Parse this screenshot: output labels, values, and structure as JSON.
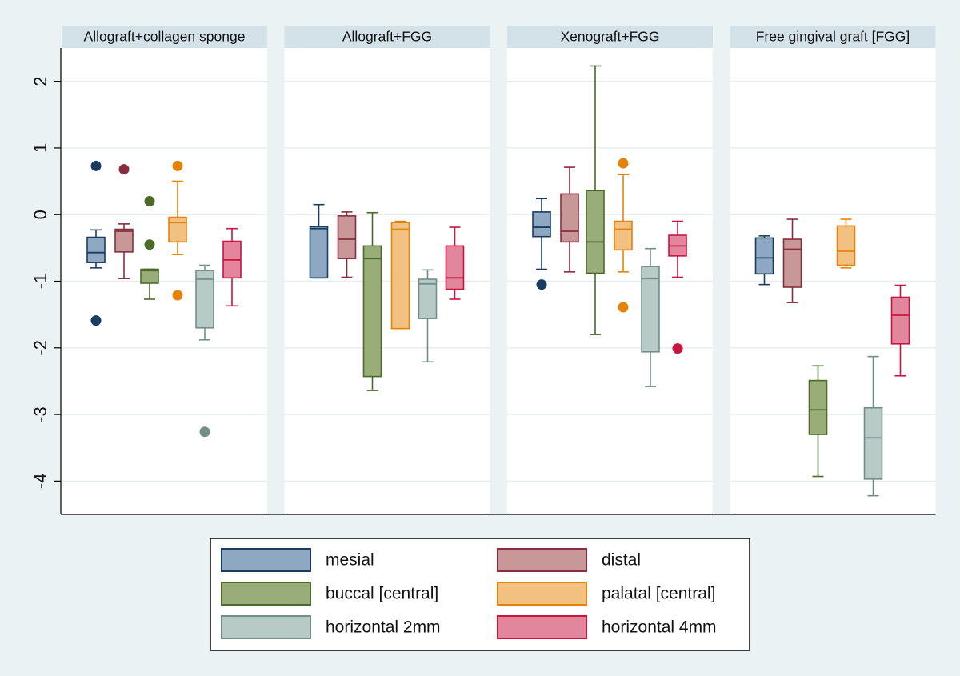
{
  "chart_data": {
    "type": "box",
    "y_axis": {
      "range": [
        -4.5,
        2.5
      ],
      "ticks": [
        2,
        1,
        0,
        -1,
        -2,
        -3,
        -4
      ],
      "tick_labels": [
        "2",
        "1",
        "0",
        "-1",
        "-2",
        "-3",
        "-4"
      ],
      "grid": true,
      "label": ""
    },
    "xlabel": "",
    "series": [
      {
        "name": "mesial",
        "fill": "#8fa8c2",
        "stroke": "#1a3c63"
      },
      {
        "name": "distal",
        "fill": "#c89898",
        "stroke": "#8a2c3d"
      },
      {
        "name": "buccal [central]",
        "fill": "#98ad78",
        "stroke": "#4a6b2a"
      },
      {
        "name": "palatal [central]",
        "fill": "#f2c080",
        "stroke": "#e5820a"
      },
      {
        "name": "horizontal 2mm",
        "fill": "#b8cac6",
        "stroke": "#718f8a"
      },
      {
        "name": "horizontal 4mm",
        "fill": "#e2869d",
        "stroke": "#c8143e"
      }
    ],
    "panels": [
      {
        "title": "Allograft+collagen sponge",
        "boxes": [
          {
            "series": "mesial",
            "whisker_low": -0.8,
            "q1": -0.72,
            "median": -0.57,
            "q3": -0.34,
            "whisker_high": -0.23,
            "outliers": [
              0.73,
              -1.59
            ]
          },
          {
            "series": "distal",
            "whisker_low": -0.96,
            "q1": -0.56,
            "median": -0.25,
            "q3": -0.22,
            "whisker_high": -0.14,
            "outliers": [
              0.68
            ]
          },
          {
            "series": "buccal [central]",
            "whisker_low": -1.27,
            "q1": -1.03,
            "median": -0.84,
            "q3": -0.82,
            "whisker_high": -0.82,
            "outliers": [
              0.2,
              -0.45
            ]
          },
          {
            "series": "palatal [central]",
            "whisker_low": -0.6,
            "q1": -0.41,
            "median": -0.12,
            "q3": -0.04,
            "whisker_high": 0.5,
            "outliers": [
              0.73,
              -1.21
            ]
          },
          {
            "series": "horizontal 2mm",
            "whisker_low": -1.88,
            "q1": -1.7,
            "median": -0.97,
            "q3": -0.84,
            "whisker_high": -0.76,
            "outliers": [
              -3.26
            ]
          },
          {
            "series": "horizontal 4mm",
            "whisker_low": -1.37,
            "q1": -0.95,
            "median": -0.68,
            "q3": -0.4,
            "whisker_high": -0.21,
            "outliers": []
          }
        ]
      },
      {
        "title": "Allograft+FGG",
        "boxes": [
          {
            "series": "mesial",
            "whisker_low": -0.95,
            "q1": -0.95,
            "median": -0.21,
            "q3": -0.18,
            "whisker_high": 0.15,
            "outliers": []
          },
          {
            "series": "distal",
            "whisker_low": -0.94,
            "q1": -0.66,
            "median": -0.37,
            "q3": -0.02,
            "whisker_high": 0.04,
            "outliers": []
          },
          {
            "series": "buccal [central]",
            "whisker_low": -2.64,
            "q1": -2.43,
            "median": -0.66,
            "q3": -0.47,
            "whisker_high": 0.03,
            "outliers": []
          },
          {
            "series": "palatal [central]",
            "whisker_low": -1.71,
            "q1": -1.71,
            "median": -0.22,
            "q3": -0.12,
            "whisker_high": -0.1,
            "outliers": []
          },
          {
            "series": "horizontal 2mm",
            "whisker_low": -2.21,
            "q1": -1.56,
            "median": -1.04,
            "q3": -0.97,
            "whisker_high": -0.83,
            "outliers": []
          },
          {
            "series": "horizontal 4mm",
            "whisker_low": -1.27,
            "q1": -1.12,
            "median": -0.95,
            "q3": -0.47,
            "whisker_high": -0.19,
            "outliers": []
          }
        ]
      },
      {
        "title": "Xenograft+FGG",
        "boxes": [
          {
            "series": "mesial",
            "whisker_low": -0.82,
            "q1": -0.33,
            "median": -0.19,
            "q3": 0.04,
            "whisker_high": 0.24,
            "outliers": [
              -1.05
            ]
          },
          {
            "series": "distal",
            "whisker_low": -0.86,
            "q1": -0.41,
            "median": -0.25,
            "q3": 0.31,
            "whisker_high": 0.71,
            "outliers": []
          },
          {
            "series": "buccal [central]",
            "whisker_low": -1.8,
            "q1": -0.88,
            "median": -0.41,
            "q3": 0.36,
            "whisker_high": 2.23,
            "outliers": []
          },
          {
            "series": "palatal [central]",
            "whisker_low": -0.86,
            "q1": -0.53,
            "median": -0.22,
            "q3": -0.1,
            "whisker_high": 0.6,
            "outliers": [
              0.77,
              -1.39
            ]
          },
          {
            "series": "horizontal 2mm",
            "whisker_low": -2.58,
            "q1": -2.06,
            "median": -0.96,
            "q3": -0.78,
            "whisker_high": -0.51,
            "outliers": []
          },
          {
            "series": "horizontal 4mm",
            "whisker_low": -0.94,
            "q1": -0.62,
            "median": -0.47,
            "q3": -0.31,
            "whisker_high": -0.1,
            "outliers": [
              -2.01
            ]
          }
        ]
      },
      {
        "title": "Free gingival graft [FGG]",
        "boxes": [
          {
            "series": "mesial",
            "whisker_low": -1.05,
            "q1": -0.89,
            "median": -0.65,
            "q3": -0.35,
            "whisker_high": -0.32,
            "outliers": []
          },
          {
            "series": "distal",
            "whisker_low": -1.32,
            "q1": -1.09,
            "median": -0.52,
            "q3": -0.37,
            "whisker_high": -0.07,
            "outliers": []
          },
          {
            "series": "buccal [central]",
            "whisker_low": -3.93,
            "q1": -3.3,
            "median": -2.93,
            "q3": -2.49,
            "whisker_high": -2.27,
            "outliers": []
          },
          {
            "series": "palatal [central]",
            "whisker_low": -0.8,
            "q1": -0.76,
            "median": -0.55,
            "q3": -0.17,
            "whisker_high": -0.07,
            "outliers": []
          },
          {
            "series": "horizontal 2mm",
            "whisker_low": -4.22,
            "q1": -3.97,
            "median": -3.35,
            "q3": -2.9,
            "whisker_high": -2.13,
            "outliers": []
          },
          {
            "series": "horizontal 4mm",
            "whisker_low": -2.42,
            "q1": -1.94,
            "median": -1.51,
            "q3": -1.24,
            "whisker_high": -1.06,
            "outliers": []
          }
        ]
      }
    ],
    "legend": {
      "placement": "bottom",
      "columns": 2,
      "entries": [
        "mesial",
        "distal",
        "buccal [central]",
        "palatal [central]",
        "horizontal 2mm",
        "horizontal 4mm"
      ]
    }
  }
}
